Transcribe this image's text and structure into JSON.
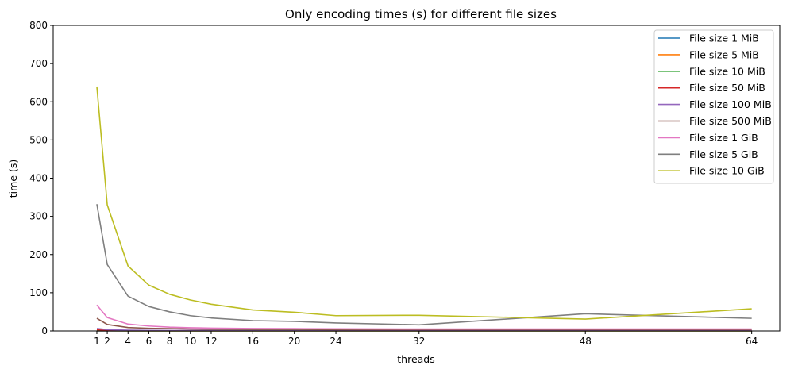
{
  "chart_data": {
    "type": "line",
    "title": "Only encoding times (s) for different file sizes",
    "xlabel": "threads",
    "ylabel": "time (s)",
    "x": [
      1,
      2,
      4,
      6,
      8,
      10,
      12,
      16,
      20,
      24,
      32,
      48,
      64
    ],
    "xticks": [
      1,
      2,
      4,
      6,
      8,
      10,
      12,
      16,
      20,
      24,
      32,
      48,
      64
    ],
    "xlim": [
      -3.2,
      66.7
    ],
    "ylim": [
      0,
      800
    ],
    "yticks": [
      0,
      100,
      200,
      300,
      400,
      500,
      600,
      700,
      800
    ],
    "grid": false,
    "legend_position": "top-right",
    "series": [
      {
        "name": "File size 1 MiB",
        "color": "#1f77b4",
        "values": [
          0.1,
          0.1,
          0.1,
          0.1,
          0.1,
          0.1,
          0.1,
          0.1,
          0.1,
          0.1,
          0.1,
          0.1,
          0.1
        ]
      },
      {
        "name": "File size 5 MiB",
        "color": "#ff7f0e",
        "values": [
          0.4,
          0.3,
          0.2,
          0.2,
          0.2,
          0.2,
          0.2,
          0.2,
          0.2,
          0.2,
          0.2,
          0.2,
          0.2
        ]
      },
      {
        "name": "File size 10 MiB",
        "color": "#2ca02c",
        "values": [
          0.7,
          0.5,
          0.4,
          0.3,
          0.3,
          0.3,
          0.3,
          0.3,
          0.3,
          0.3,
          0.3,
          0.3,
          0.3
        ]
      },
      {
        "name": "File size 50 MiB",
        "color": "#d62728",
        "values": [
          3.3,
          1.8,
          1.0,
          0.8,
          0.7,
          0.6,
          0.6,
          0.5,
          0.5,
          0.5,
          0.5,
          0.5,
          0.5
        ]
      },
      {
        "name": "File size 100 MiB",
        "color": "#9467bd",
        "values": [
          6.5,
          3.5,
          2.0,
          1.5,
          1.3,
          1.2,
          1.1,
          1.0,
          1.0,
          1.0,
          1.0,
          1.0,
          1.0
        ]
      },
      {
        "name": "File size 500 MiB",
        "color": "#8c564b",
        "values": [
          33,
          17,
          9,
          7,
          6,
          5,
          4.5,
          4,
          4,
          3.5,
          3.5,
          3.5,
          3.5
        ]
      },
      {
        "name": "File size 1 GiB",
        "color": "#e377c2",
        "values": [
          68,
          35,
          18,
          13,
          10,
          8.5,
          7.5,
          6.5,
          6,
          5.5,
          5,
          5,
          5
        ]
      },
      {
        "name": "File size 5 GiB",
        "color": "#7f7f7f",
        "values": [
          332,
          174,
          91,
          64,
          50,
          40,
          34,
          27,
          25,
          21,
          16,
          45,
          33
        ]
      },
      {
        "name": "File size 10 GiB",
        "color": "#bcbd22",
        "values": [
          640,
          330,
          170,
          120,
          96,
          81,
          70,
          55,
          49,
          40,
          41,
          31,
          58
        ]
      }
    ]
  }
}
